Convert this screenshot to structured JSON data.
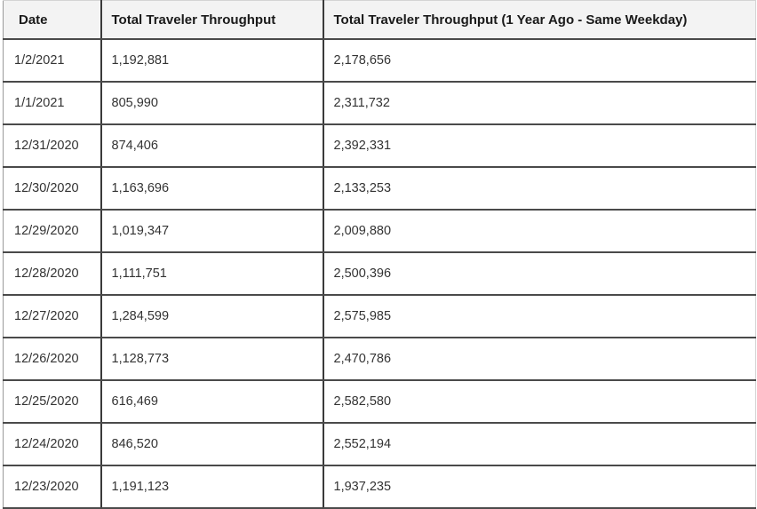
{
  "table": {
    "headers": [
      "Date",
      "Total Traveler Throughput",
      "Total Traveler Throughput (1 Year Ago - Same Weekday)"
    ],
    "rows": [
      [
        "1/2/2021",
        "1,192,881",
        "2,178,656"
      ],
      [
        "1/1/2021",
        "805,990",
        "2,311,732"
      ],
      [
        "12/31/2020",
        "874,406",
        "2,392,331"
      ],
      [
        "12/30/2020",
        "1,163,696",
        "2,133,253"
      ],
      [
        "12/29/2020",
        "1,019,347",
        "2,009,880"
      ],
      [
        "12/28/2020",
        "1,111,751",
        "2,500,396"
      ],
      [
        "12/27/2020",
        "1,284,599",
        "2,575,985"
      ],
      [
        "12/26/2020",
        "1,128,773",
        "2,470,786"
      ],
      [
        "12/25/2020",
        "616,469",
        "2,582,580"
      ],
      [
        "12/24/2020",
        "846,520",
        "2,552,194"
      ],
      [
        "12/23/2020",
        "1,191,123",
        "1,937,235"
      ]
    ]
  }
}
